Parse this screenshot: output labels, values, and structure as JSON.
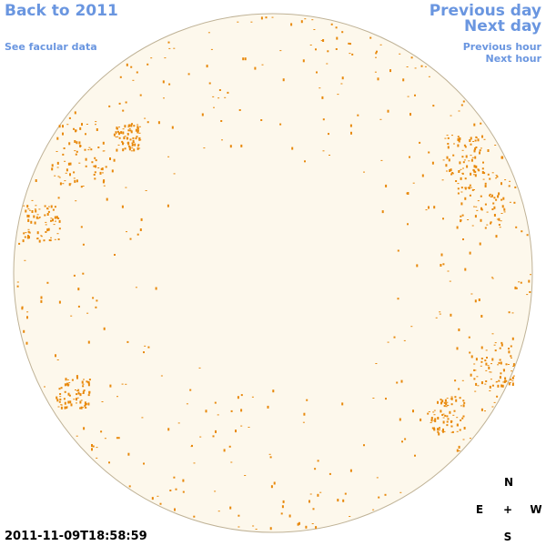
{
  "links": {
    "back_year": "Back to 2011",
    "facular_data": "See facular data",
    "previous_day": "Previous day",
    "next_day": "Next day",
    "previous_hour": "Previous hour",
    "next_hour": "Next hour"
  },
  "timestamp": "2011-11-09T18:58:59",
  "compass": {
    "north": "N",
    "east": "E",
    "center": "+",
    "west": "W",
    "south": "S"
  }
}
